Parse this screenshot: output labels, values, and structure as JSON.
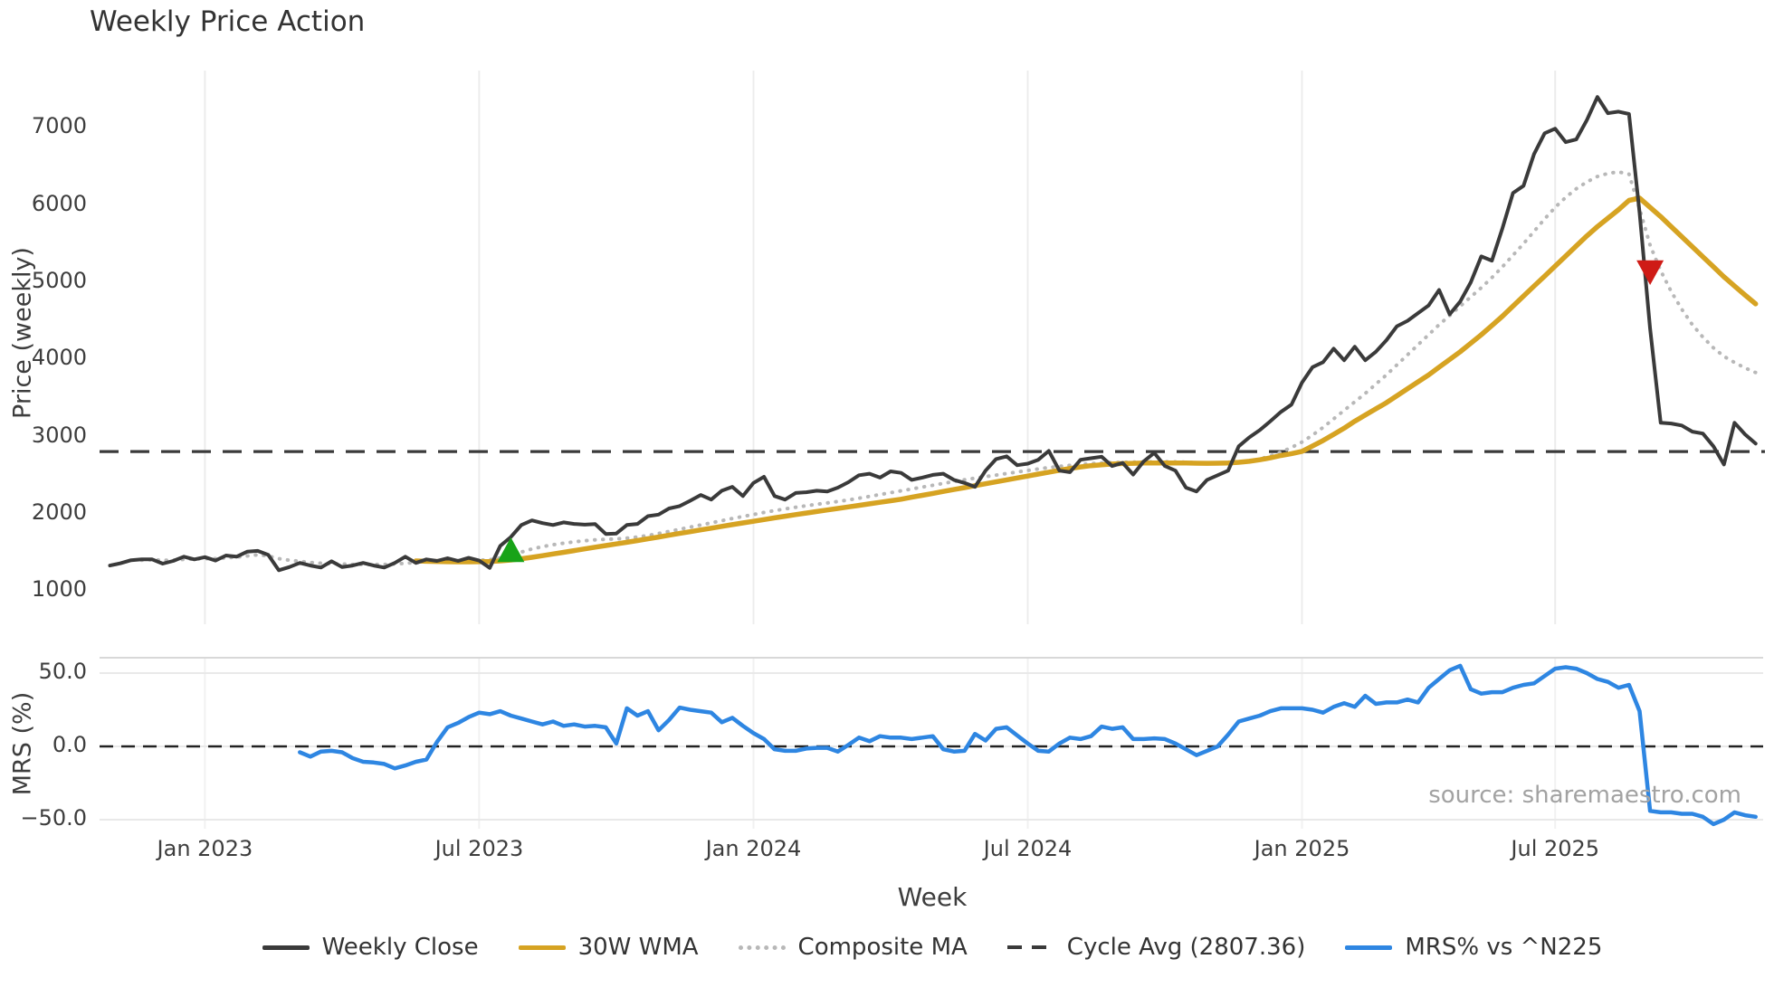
{
  "title": "Weekly Price Action",
  "source_note": "source: sharemaestro.com",
  "axes": {
    "price": {
      "label": "Price (weekly)",
      "tick_values": [
        1000,
        2000,
        3000,
        4000,
        5000,
        6000,
        7000
      ]
    },
    "mrs": {
      "label": "MRS (%)",
      "tick_values": [
        50.0,
        0.0,
        -50.0
      ],
      "tick_labels": [
        "50.0",
        "0.0",
        "−50.0"
      ]
    },
    "x": {
      "label": "Week"
    }
  },
  "legend": [
    {
      "label": "Weekly Close",
      "style": "solid",
      "color": "#3a3a3a"
    },
    {
      "label": "30W WMA",
      "style": "solid",
      "color": "#d6a322"
    },
    {
      "label": "Composite MA",
      "style": "dotted",
      "color": "#b8b8b8"
    },
    {
      "label": "Cycle Avg (2807.36)",
      "style": "dashed",
      "color": "#3a3a3a"
    },
    {
      "label": "MRS% vs ^N225",
      "style": "solid",
      "color": "#2e86e2"
    }
  ],
  "chart_data": {
    "type": "line",
    "layout": {
      "panels": 2,
      "grid": "vertical-light",
      "legend_position": "bottom-center"
    },
    "x_axis": {
      "label": "Week",
      "tick_labels": [
        "Jan 2023",
        "Jul 2023",
        "Jan 2024",
        "Jul 2024",
        "Jan 2025",
        "Jul 2025"
      ],
      "tick_weeks": [
        9,
        35,
        61,
        87,
        113,
        137
      ],
      "total_weeks": 157
    },
    "panels": {
      "price": {
        "ylabel": "Price (weekly)",
        "ylim": [
          600,
          7700
        ],
        "tick_values": [
          1000,
          2000,
          3000,
          4000,
          5000,
          6000,
          7000
        ],
        "cycle_avg": 2807.36,
        "series": [
          {
            "name": "Weekly Close",
            "color": "#3a3a3a",
            "style": "solid",
            "width": 4,
            "start_week": 0,
            "values": [
              1330,
              1360,
              1400,
              1410,
              1410,
              1355,
              1390,
              1445,
              1410,
              1440,
              1395,
              1460,
              1445,
              1510,
              1520,
              1470,
              1270,
              1310,
              1365,
              1330,
              1305,
              1385,
              1310,
              1330,
              1365,
              1330,
              1305,
              1365,
              1445,
              1365,
              1410,
              1390,
              1425,
              1390,
              1430,
              1395,
              1300,
              1585,
              1700,
              1855,
              1915,
              1880,
              1855,
              1890,
              1870,
              1860,
              1867,
              1740,
              1745,
              1855,
              1870,
              1970,
              1990,
              2070,
              2100,
              2170,
              2245,
              2185,
              2300,
              2350,
              2230,
              2400,
              2480,
              2230,
              2185,
              2270,
              2280,
              2300,
              2290,
              2340,
              2410,
              2500,
              2520,
              2470,
              2550,
              2530,
              2440,
              2470,
              2505,
              2520,
              2440,
              2400,
              2350,
              2560,
              2710,
              2745,
              2630,
              2650,
              2700,
              2815,
              2560,
              2540,
              2700,
              2720,
              2740,
              2620,
              2660,
              2510,
              2680,
              2790,
              2620,
              2560,
              2340,
              2290,
              2440,
              2500,
              2560,
              2875,
              2990,
              3085,
              3200,
              3320,
              3415,
              3700,
              3900,
              3965,
              4140,
              3990,
              4165,
              3990,
              4100,
              4250,
              4430,
              4500,
              4600,
              4700,
              4900,
              4585,
              4750,
              5000,
              5335,
              5280,
              5700,
              6155,
              6250,
              6660,
              6930,
              6990,
              6815,
              6850,
              7100,
              7400,
              7190,
              7210,
              7180,
              5900,
              4400,
              3180,
              3170,
              3145,
              3065,
              3040,
              2875,
              2640,
              3180,
              3030,
              2910
            ]
          },
          {
            "name": "30W WMA",
            "color": "#d6a322",
            "style": "solid",
            "width": 5.5,
            "start_week": 29,
            "values": [
              1390,
              1386,
              1383,
              1380,
              1379,
              1379,
              1380,
              1383,
              1390,
              1402,
              1418,
              1437,
              1458,
              1480,
              1502,
              1524,
              1546,
              1568,
              1589,
              1610,
              1632,
              1654,
              1677,
              1700,
              1723,
              1746,
              1769,
              1792,
              1815,
              1838,
              1860,
              1882,
              1904,
              1926,
              1948,
              1969,
              1990,
              2010,
              2030,
              2050,
              2070,
              2090,
              2110,
              2130,
              2150,
              2170,
              2190,
              2215,
              2240,
              2265,
              2290,
              2315,
              2340,
              2365,
              2390,
              2415,
              2440,
              2465,
              2490,
              2515,
              2540,
              2565,
              2588,
              2608,
              2624,
              2636,
              2645,
              2651,
              2655,
              2658,
              2660,
              2660,
              2660,
              2658,
              2656,
              2655,
              2656,
              2660,
              2668,
              2680,
              2700,
              2725,
              2755,
              2780,
              2810,
              2880,
              2950,
              3030,
              3110,
              3200,
              3280,
              3360,
              3440,
              3530,
              3620,
              3710,
              3800,
              3900,
              4000,
              4100,
              4210,
              4320,
              4440,
              4560,
              4690,
              4820,
              4950,
              5080,
              5210,
              5340,
              5470,
              5600,
              5720,
              5830,
              5940,
              6060,
              6090,
              5970,
              5850,
              5720,
              5590,
              5460,
              5330,
              5200,
              5070,
              4950,
              4835,
              4720
            ]
          },
          {
            "name": "Composite MA",
            "color": "#b8b8b8",
            "style": "dotted",
            "width": 4,
            "start_week": 3,
            "values": [
              1400,
              1405,
              1400,
              1400,
              1410,
              1415,
              1420,
              1420,
              1430,
              1440,
              1455,
              1470,
              1455,
              1420,
              1400,
              1385,
              1370,
              1360,
              1355,
              1350,
              1345,
              1345,
              1345,
              1345,
              1350,
              1360,
              1370,
              1380,
              1385,
              1390,
              1395,
              1398,
              1400,
              1405,
              1430,
              1465,
              1505,
              1545,
              1575,
              1600,
              1620,
              1638,
              1652,
              1663,
              1670,
              1675,
              1685,
              1700,
              1720,
              1745,
              1772,
              1800,
              1828,
              1856,
              1884,
              1912,
              1940,
              1966,
              1992,
              2018,
              2042,
              2064,
              2085,
              2105,
              2124,
              2142,
              2160,
              2180,
              2202,
              2226,
              2250,
              2274,
              2298,
              2322,
              2346,
              2370,
              2394,
              2418,
              2442,
              2462,
              2482,
              2502,
              2522,
              2542,
              2562,
              2582,
              2600,
              2615,
              2628,
              2640,
              2650,
              2658,
              2664,
              2668,
              2670,
              2672,
              2674,
              2675,
              2674,
              2670,
              2662,
              2654,
              2650,
              2652,
              2660,
              2680,
              2710,
              2750,
              2800,
              2860,
              2930,
              3020,
              3120,
              3230,
              3340,
              3450,
              3560,
              3680,
              3800,
              3930,
              4060,
              4190,
              4320,
              4450,
              4570,
              4690,
              4810,
              4930,
              5060,
              5200,
              5350,
              5500,
              5660,
              5820,
              5970,
              6100,
              6210,
              6300,
              6370,
              6410,
              6430,
              6400,
              5950,
              5480,
              5150,
              4880,
              4650,
              4450,
              4290,
              4150,
              4040,
              3960,
              3890,
              3830
            ]
          }
        ],
        "markers": [
          {
            "name": "buy-signal",
            "shape": "triangle-up",
            "color": "#18a318",
            "week": 38,
            "value": 1520
          },
          {
            "name": "sell-signal",
            "shape": "triangle-down",
            "color": "#cf1b16",
            "week": 146,
            "value": 5140
          }
        ]
      },
      "mrs": {
        "ylabel": "MRS (%)",
        "ylim": [
          -57,
          60
        ],
        "tick_values": [
          50.0,
          0.0,
          -50.0
        ],
        "zero_line": 0,
        "series": [
          {
            "name": "MRS% vs ^N225",
            "color": "#2e86e2",
            "style": "solid",
            "width": 4.5,
            "start_week": 18,
            "values": [
              -4,
              -7,
              -3.5,
              -3,
              -4,
              -8,
              -10.5,
              -11,
              -12,
              -15,
              -13,
              -10.5,
              -9,
              3,
              13,
              16,
              20,
              23,
              22,
              24,
              21,
              19,
              17,
              15,
              17,
              14,
              15,
              13.5,
              14,
              13,
              2,
              26,
              21,
              24,
              11,
              18,
              26.5,
              25,
              24,
              23,
              16.5,
              19.5,
              14,
              9,
              5,
              -2,
              -3,
              -3,
              -1.5,
              -1,
              -1,
              -3.5,
              1,
              6,
              3.5,
              7,
              6,
              6,
              5,
              6,
              7,
              -2,
              -3.5,
              -3,
              8.5,
              4,
              12,
              13,
              7.5,
              2,
              -3,
              -3.5,
              2,
              6,
              5,
              7,
              13.5,
              12,
              13,
              5,
              5,
              5.5,
              5,
              2,
              -2,
              -6,
              -3,
              0,
              8,
              17,
              19,
              21,
              24,
              26,
              26,
              26,
              25,
              23,
              27,
              29.5,
              27,
              34.5,
              29,
              30,
              30,
              32,
              30,
              40,
              46,
              52,
              55,
              39,
              36,
              37,
              37,
              40,
              42,
              43,
              48,
              53,
              54,
              53,
              50,
              46,
              44,
              40,
              42,
              24,
              -44,
              -45,
              -45,
              -46,
              -46,
              -48,
              -53,
              -50,
              -45,
              -47,
              -48
            ]
          }
        ]
      }
    }
  }
}
